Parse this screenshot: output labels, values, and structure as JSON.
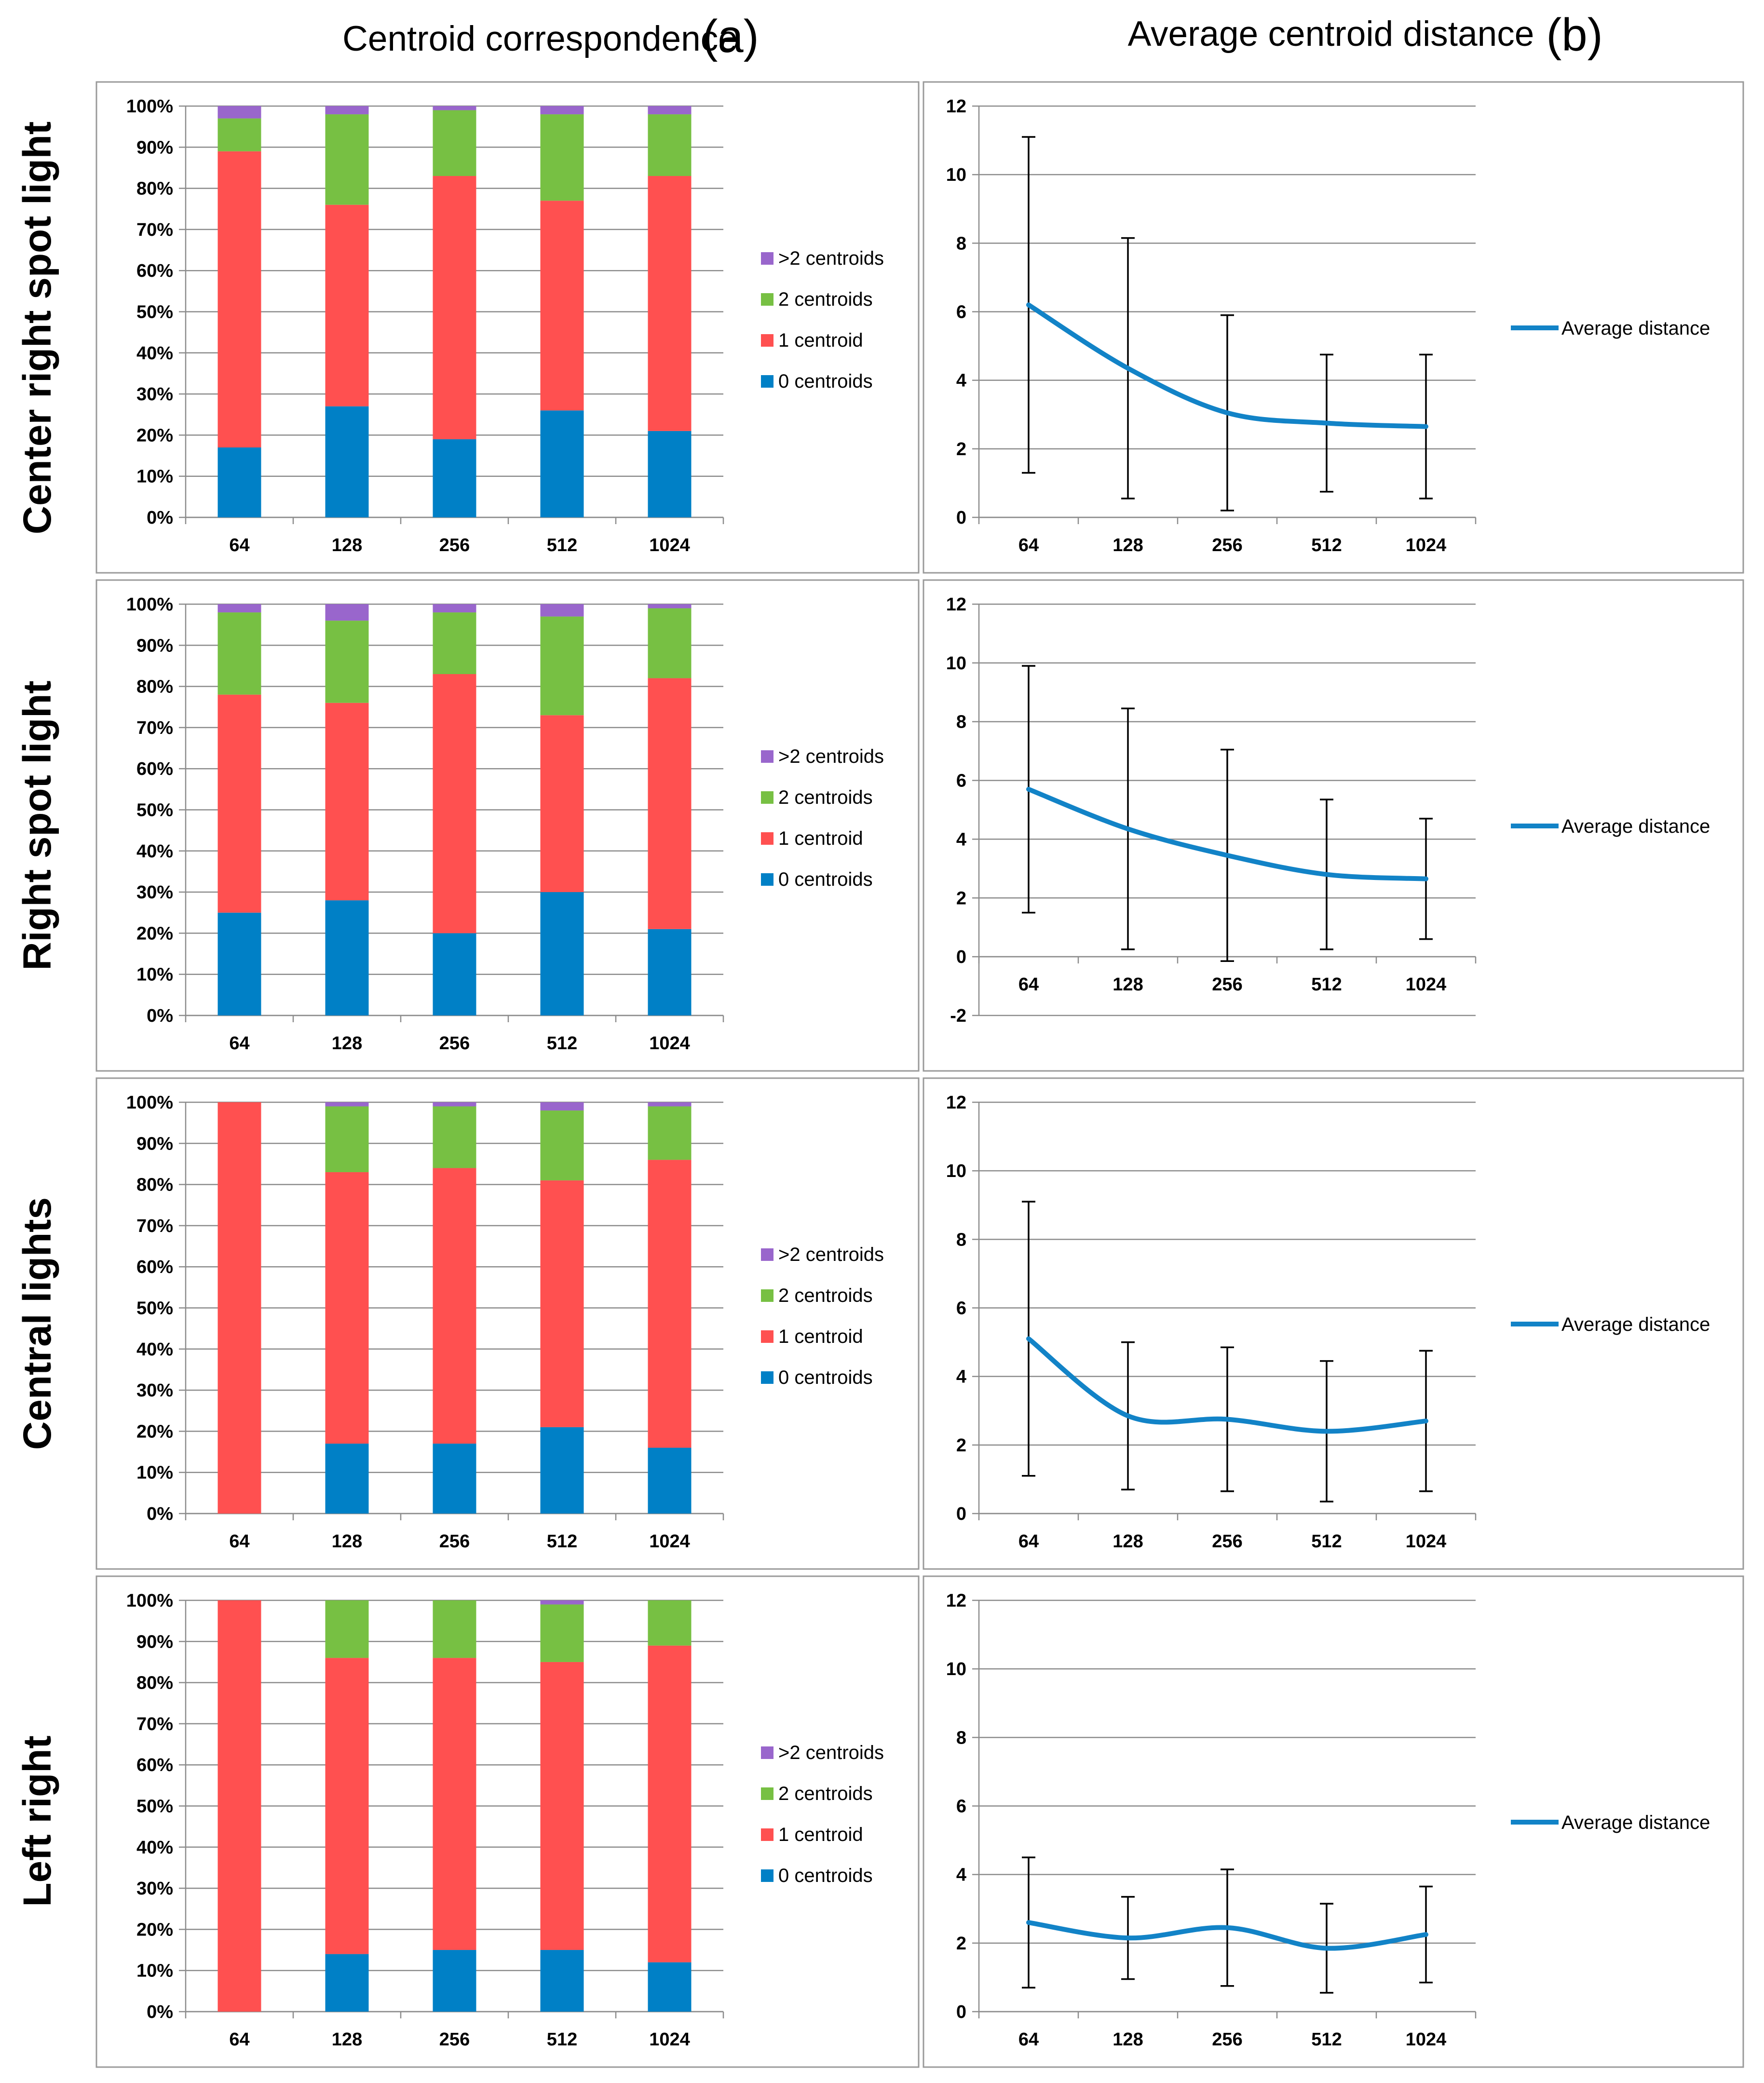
{
  "figure": {
    "col_a": {
      "title": "Centroid correspondence",
      "letter": "(a)"
    },
    "col_b": {
      "title": "Average centroid distance",
      "letter": "(b)"
    }
  },
  "colors": {
    "c0": "#0080c6",
    "c1": "#ff5050",
    "c2": "#77c043",
    "c3": "#9966cc",
    "line": "#1283c7",
    "grid": "#8c8c8c",
    "frame": "#9a9a9a",
    "error_bar": "#000000"
  },
  "bar_legend": [
    ">2 centroids",
    "2 centroids",
    "1 centroid",
    "0 centroids"
  ],
  "line_legend": "Average distance",
  "chart_data": [
    {
      "type": "bar",
      "stacked": true,
      "panel": "a",
      "row_label": "Center right spot light",
      "categories": [
        "64",
        "128",
        "256",
        "512",
        "1024"
      ],
      "y_ticks": [
        "0%",
        "10%",
        "20%",
        "30%",
        "40%",
        "50%",
        "60%",
        "70%",
        "80%",
        "90%",
        "100%"
      ],
      "ylim": [
        0,
        100
      ],
      "series": [
        {
          "name": "0 centroids",
          "values": [
            17,
            27,
            19,
            26,
            21
          ]
        },
        {
          "name": "1 centroid",
          "values": [
            72,
            49,
            64,
            51,
            62
          ]
        },
        {
          "name": "2 centroids",
          "values": [
            8,
            22,
            16,
            21,
            15
          ]
        },
        {
          "name": ">2 centroids",
          "values": [
            3,
            2,
            1,
            2,
            2
          ]
        }
      ]
    },
    {
      "type": "line",
      "panel": "b",
      "row_label": "Center right spot light",
      "categories": [
        "64",
        "128",
        "256",
        "512",
        "1024"
      ],
      "y_ticks": [
        "0",
        "2",
        "4",
        "6",
        "8",
        "10",
        "12"
      ],
      "ylim": [
        0,
        12
      ],
      "series": [
        {
          "name": "Average distance",
          "values": [
            6.2,
            4.35,
            3.05,
            2.75,
            2.65
          ],
          "error": [
            4.9,
            3.8,
            2.85,
            2.0,
            2.1
          ]
        }
      ]
    },
    {
      "type": "bar",
      "stacked": true,
      "panel": "a",
      "row_label": "Right spot light",
      "categories": [
        "64",
        "128",
        "256",
        "512",
        "1024"
      ],
      "y_ticks": [
        "0%",
        "10%",
        "20%",
        "30%",
        "40%",
        "50%",
        "60%",
        "70%",
        "80%",
        "90%",
        "100%"
      ],
      "ylim": [
        0,
        100
      ],
      "series": [
        {
          "name": "0 centroids",
          "values": [
            25,
            28,
            20,
            30,
            21
          ]
        },
        {
          "name": "1 centroid",
          "values": [
            53,
            48,
            63,
            43,
            61
          ]
        },
        {
          "name": "2 centroids",
          "values": [
            20,
            20,
            15,
            24,
            17
          ]
        },
        {
          "name": ">2 centroids",
          "values": [
            2,
            4,
            2,
            3,
            1
          ]
        }
      ]
    },
    {
      "type": "line",
      "panel": "b",
      "row_label": "Right spot light",
      "categories": [
        "64",
        "128",
        "256",
        "512",
        "1024"
      ],
      "y_ticks": [
        "-2",
        "0",
        "2",
        "4",
        "6",
        "8",
        "10",
        "12"
      ],
      "ylim": [
        -2,
        12
      ],
      "series": [
        {
          "name": "Average distance",
          "values": [
            5.7,
            4.35,
            3.45,
            2.8,
            2.65
          ],
          "error": [
            4.2,
            4.1,
            3.6,
            2.55,
            2.05
          ]
        }
      ]
    },
    {
      "type": "bar",
      "stacked": true,
      "panel": "a",
      "row_label": "Central lights",
      "categories": [
        "64",
        "128",
        "256",
        "512",
        "1024"
      ],
      "y_ticks": [
        "0%",
        "10%",
        "20%",
        "30%",
        "40%",
        "50%",
        "60%",
        "70%",
        "80%",
        "90%",
        "100%"
      ],
      "ylim": [
        0,
        100
      ],
      "series": [
        {
          "name": "0 centroids",
          "values": [
            0,
            17,
            17,
            21,
            16
          ]
        },
        {
          "name": "1 centroid",
          "values": [
            100,
            66,
            67,
            60,
            70
          ]
        },
        {
          "name": "2 centroids",
          "values": [
            0,
            16,
            15,
            17,
            13
          ]
        },
        {
          "name": ">2 centroids",
          "values": [
            0,
            1,
            1,
            2,
            1
          ]
        }
      ]
    },
    {
      "type": "line",
      "panel": "b",
      "row_label": "Central lights",
      "categories": [
        "64",
        "128",
        "256",
        "512",
        "1024"
      ],
      "y_ticks": [
        "0",
        "2",
        "4",
        "6",
        "8",
        "10",
        "12"
      ],
      "ylim": [
        0,
        12
      ],
      "series": [
        {
          "name": "Average distance",
          "values": [
            5.1,
            2.85,
            2.75,
            2.4,
            2.7
          ],
          "error": [
            4.0,
            2.15,
            2.1,
            2.05,
            2.05
          ]
        }
      ]
    },
    {
      "type": "bar",
      "stacked": true,
      "panel": "a",
      "row_label": "Left right",
      "categories": [
        "64",
        "128",
        "256",
        "512",
        "1024"
      ],
      "y_ticks": [
        "0%",
        "10%",
        "20%",
        "30%",
        "40%",
        "50%",
        "60%",
        "70%",
        "80%",
        "90%",
        "100%"
      ],
      "ylim": [
        0,
        100
      ],
      "series": [
        {
          "name": "0 centroids",
          "values": [
            0,
            14,
            15,
            15,
            12
          ]
        },
        {
          "name": "1 centroid",
          "values": [
            100,
            72,
            71,
            70,
            77
          ]
        },
        {
          "name": "2 centroids",
          "values": [
            0,
            14,
            14,
            14,
            11
          ]
        },
        {
          "name": ">2 centroids",
          "values": [
            0,
            0,
            0,
            1,
            0
          ]
        }
      ]
    },
    {
      "type": "line",
      "panel": "b",
      "row_label": "Left right",
      "categories": [
        "64",
        "128",
        "256",
        "512",
        "1024"
      ],
      "y_ticks": [
        "0",
        "2",
        "4",
        "6",
        "8",
        "10",
        "12"
      ],
      "ylim": [
        0,
        12
      ],
      "series": [
        {
          "name": "Average distance",
          "values": [
            2.6,
            2.15,
            2.45,
            1.85,
            2.25
          ],
          "error": [
            1.9,
            1.2,
            1.7,
            1.3,
            1.4
          ]
        }
      ]
    }
  ]
}
